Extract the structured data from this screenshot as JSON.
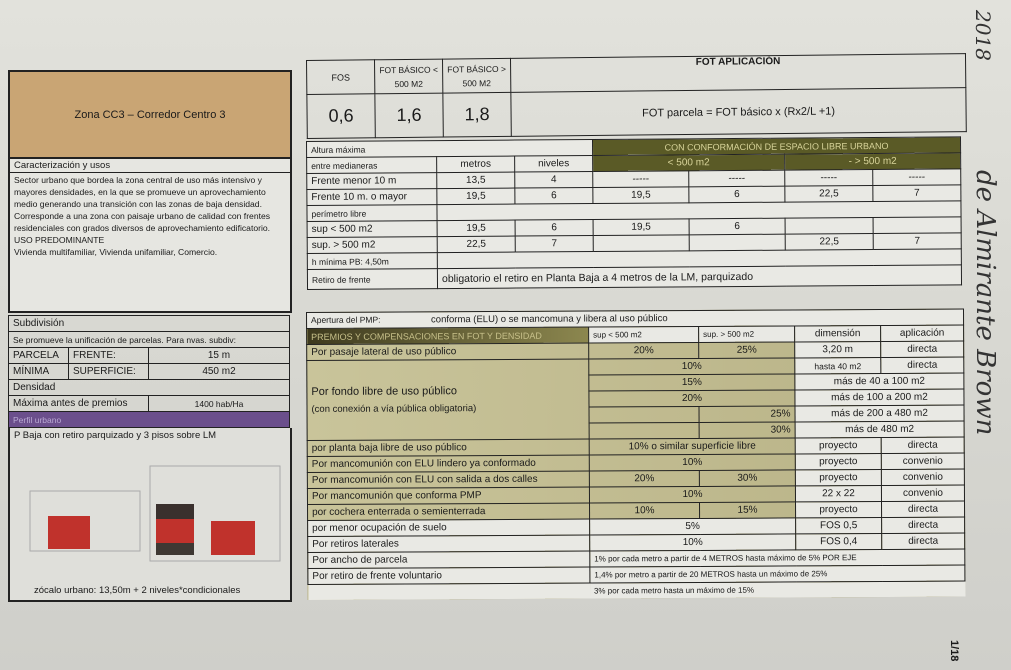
{
  "zone": {
    "title": "Zona CC3 – Corredor Centro 3",
    "color": "#c9a574"
  },
  "caracterizacion": {
    "heading": "Caracterización y usos",
    "lines": [
      "Sector urbano que bordea la zona central de uso más intensivo y",
      "mayores densidades, en la que se promueve un aprovechamiento",
      "medio generando una transición con las zonas de baja densidad.",
      "Corresponde a una zona con paisaje urbano de calidad con frentes",
      "residenciales con grados diversos de aprovechamiento edificatorio.",
      "USO PREDOMINANTE",
      "Vivienda multifamiliar, Vivienda unifamiliar, Comercio."
    ]
  },
  "subdivision": {
    "heading": "Subdivisión",
    "note": "Se promueve la unificación de parcelas. Para nvas. subdiv:",
    "parcela": "PARCELA",
    "minima": "MÍNIMA",
    "frente_label": "FRENTE:",
    "frente_value": "15 m",
    "superficie_label": "SUPERFICIE:",
    "superficie_value": "450 m2"
  },
  "densidad": {
    "heading": "Densidad",
    "label": "Máxima antes de premios",
    "value": "1400 hab/Ha"
  },
  "perfil": {
    "heading": "Perfil urbano",
    "description": "P Baja con retiro parquizado y 3 pisos sobre LM",
    "caption": "zócalo urbano:  13,50m   + 2 niveles*condicionales",
    "color": "#6b4f8c"
  },
  "fot": {
    "headers": [
      "FOS",
      "FOT BÁSICO < 500 M2",
      "FOT BÁSICO > 500 M2",
      "FOT APLICACIÓN"
    ],
    "values": [
      "0,6",
      "1,6",
      "1,8"
    ],
    "formula": "FOT parcela = FOT básico x (Rx2/L +1)"
  },
  "altura": {
    "title": "Altura máxima",
    "green_header": "CON CONFORMACIÓN DE ESPACIO LIBRE URBANO",
    "sub": "entre medianeras",
    "metros": "metros",
    "niveles": "niveles",
    "lt500": "< 500 m2",
    "gt500": "-        > 500 m2",
    "rows": [
      [
        "Frente menor 10 m",
        "13,5",
        "4",
        "-----",
        "-----",
        "-----",
        "-----"
      ],
      [
        "Frente 10 m. o mayor",
        "19,5",
        "6",
        "19,5",
        "6",
        "22,5",
        "7"
      ]
    ],
    "perimetro": "perímetro libre",
    "rows2": [
      [
        "sup < 500 m2",
        "19,5",
        "6",
        "19,5",
        "6",
        "",
        ""
      ],
      [
        "sup. > 500 m2",
        "22,5",
        "7",
        "",
        "",
        "22,5",
        "7"
      ]
    ],
    "hmin": "h mínima PB: 4,50m",
    "retiro_label": "Retiro de frente",
    "retiro_text": "obligatorio el retiro en Planta Baja a 4 metros de la LM, parquizado"
  },
  "premios": {
    "apertura_label": "Apertura del PMP:",
    "apertura_text": "conforma (ELU)  o se mancomuna y libera al uso público",
    "headers": [
      "PREMIOS Y COMPENSACIONES EN FOT Y DENSIDAD",
      "sup < 500 m2",
      "sup. > 500 m2",
      "dimensión",
      "aplicación"
    ],
    "pasaje": [
      "Por pasaje lateral de uso público",
      "20%",
      "25%",
      "3,20 m",
      "directa"
    ],
    "fondo_label": [
      "Por fondo libre de uso público",
      "(con conexión a vía pública obligatoria)"
    ],
    "fondo": [
      [
        "10%",
        "hasta 40 m2",
        "directa"
      ],
      [
        "15%",
        "más de 40 a 100 m2"
      ],
      [
        "20%",
        "más de 100 a 200 m2"
      ],
      [
        "25%",
        "más de 200 a 480 m2"
      ],
      [
        "30%",
        "más de 480 m2"
      ]
    ],
    "planta_baja": [
      "por planta baja libre de uso público",
      "10%   o similar superficie libre",
      "proyecto",
      "directa"
    ],
    "lindero": [
      "Por mancomunión con ELU lindero ya conformado",
      "10%",
      "proyecto",
      "convenio"
    ],
    "dos_calles": [
      "Por mancomunión con ELU con salida a dos calles",
      "20%",
      "30%",
      "proyecto",
      "convenio"
    ],
    "pmp": [
      "Por mancomunión que conforma PMP",
      "10%",
      "22 x 22",
      "convenio"
    ],
    "cochera": [
      "por cochera enterrada o semienterrada",
      "10%",
      "15%",
      "proyecto",
      "directa"
    ],
    "ocupacion": [
      "por menor ocupación de suelo",
      "5%",
      "FOS 0,5",
      "directa"
    ],
    "laterales": [
      "Por retiros laterales",
      "10%",
      "FOS 0,4",
      "directa"
    ],
    "ancho": [
      "Por ancho de parcela",
      "1% por cada metro a partir de 4 METROS hasta máximo de 5% POR EJE"
    ],
    "voluntario": [
      "Por retiro de frente voluntario",
      "1,4% por metro a partir de 20 METROS hasta un máximo de 25%"
    ],
    "voluntario2": "3% por cada metro hasta un máximo de 15%"
  },
  "margin": {
    "year": "2018",
    "note": "de Almirante Brown",
    "page": "1/18"
  }
}
